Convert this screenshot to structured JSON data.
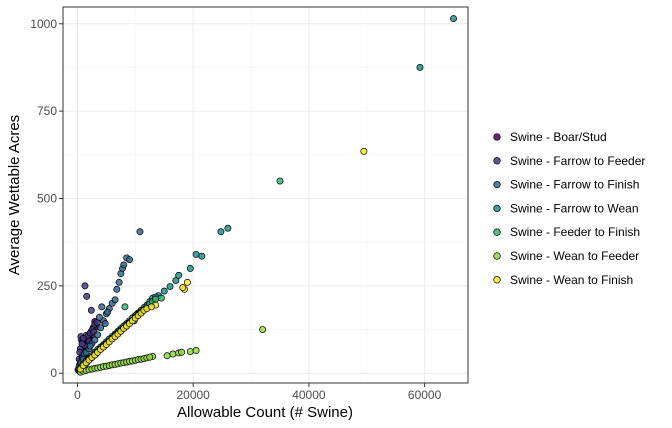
{
  "chart_data": {
    "type": "scatter",
    "title": "",
    "xlabel": "Allowable Count (# Swine)",
    "ylabel": "Average Wettable Acres",
    "xlim": [
      -2500,
      67500
    ],
    "ylim": [
      -28,
      1048
    ],
    "x_ticks": [
      {
        "value": 0,
        "label": "0"
      },
      {
        "value": 20000,
        "label": "20000"
      },
      {
        "value": 40000,
        "label": "40000"
      },
      {
        "value": 60000,
        "label": "60000"
      }
    ],
    "y_ticks": [
      {
        "value": 0,
        "label": "0"
      },
      {
        "value": 250,
        "label": "250"
      },
      {
        "value": 500,
        "label": "500"
      },
      {
        "value": 750,
        "label": "750"
      },
      {
        "value": 1000,
        "label": "1000"
      }
    ],
    "grid": true,
    "legend_position": "right",
    "point_style": {
      "stroke": "#000000",
      "opacity": 0.85
    },
    "series": [
      {
        "name": "Swine - Boar/Stud",
        "color": "#440154",
        "points": [
          [
            200,
            12
          ],
          [
            400,
            25
          ],
          [
            600,
            38
          ],
          [
            800,
            48
          ],
          [
            1000,
            60
          ],
          [
            1300,
            72
          ],
          [
            1600,
            85
          ],
          [
            2000,
            100
          ],
          [
            2400,
            120
          ],
          [
            2700,
            130
          ],
          [
            3000,
            148
          ],
          [
            3300,
            132
          ],
          [
            2500,
            110
          ],
          [
            1800,
            95
          ],
          [
            900,
            55
          ],
          [
            300,
            18
          ],
          [
            150,
            8
          ],
          [
            500,
            30
          ],
          [
            1100,
            66
          ],
          [
            1500,
            78
          ]
        ]
      },
      {
        "name": "Swine - Farrow to Feeder",
        "color": "#443983",
        "points": [
          [
            100,
            10
          ],
          [
            300,
            40
          ],
          [
            500,
            70
          ],
          [
            700,
            95
          ],
          [
            900,
            90
          ],
          [
            1200,
            80
          ],
          [
            1500,
            108
          ],
          [
            1800,
            105
          ],
          [
            2200,
            115
          ],
          [
            2600,
            125
          ],
          [
            3000,
            140
          ],
          [
            3400,
            145
          ],
          [
            600,
            105
          ],
          [
            400,
            60
          ],
          [
            1000,
            100
          ],
          [
            2000,
            92
          ],
          [
            2800,
            118
          ],
          [
            1300,
            250
          ],
          [
            1600,
            220
          ],
          [
            2400,
            180
          ],
          [
            800,
            84
          ]
        ]
      },
      {
        "name": "Swine - Farrow to Finish",
        "color": "#31688e",
        "points": [
          [
            300,
            20
          ],
          [
            600,
            30
          ],
          [
            900,
            45
          ],
          [
            1200,
            55
          ],
          [
            1500,
            60
          ],
          [
            2000,
            70
          ],
          [
            2500,
            85
          ],
          [
            3000,
            95
          ],
          [
            3500,
            110
          ],
          [
            4000,
            130
          ],
          [
            4500,
            150
          ],
          [
            5000,
            170
          ],
          [
            5500,
            185
          ],
          [
            6000,
            200
          ],
          [
            6500,
            210
          ],
          [
            6800,
            240
          ],
          [
            7200,
            260
          ],
          [
            7500,
            285
          ],
          [
            7800,
            300
          ],
          [
            8000,
            310
          ],
          [
            8500,
            330
          ],
          [
            9000,
            325
          ],
          [
            4200,
            190
          ],
          [
            3800,
            160
          ],
          [
            5200,
            175
          ],
          [
            1000,
            40
          ],
          [
            2200,
            78
          ],
          [
            4800,
            142
          ],
          [
            10800,
            405
          ]
        ]
      },
      {
        "name": "Swine - Farrow to Wean",
        "color": "#21918c",
        "points": [
          [
            500,
            15
          ],
          [
            1000,
            25
          ],
          [
            1500,
            35
          ],
          [
            2000,
            42
          ],
          [
            2500,
            50
          ],
          [
            3000,
            60
          ],
          [
            3500,
            68
          ],
          [
            4000,
            75
          ],
          [
            4500,
            82
          ],
          [
            5000,
            90
          ],
          [
            5500,
            98
          ],
          [
            6000,
            105
          ],
          [
            6500,
            112
          ],
          [
            7000,
            120
          ],
          [
            7500,
            128
          ],
          [
            8000,
            135
          ],
          [
            8500,
            142
          ],
          [
            9000,
            150
          ],
          [
            9500,
            158
          ],
          [
            10000,
            165
          ],
          [
            10500,
            172
          ],
          [
            11000,
            180
          ],
          [
            11500,
            188
          ],
          [
            12000,
            195
          ],
          [
            12500,
            205
          ],
          [
            13000,
            215
          ],
          [
            14000,
            222
          ],
          [
            15000,
            235
          ],
          [
            16000,
            248
          ],
          [
            17000,
            265
          ],
          [
            17500,
            280
          ],
          [
            19500,
            300
          ],
          [
            20500,
            340
          ],
          [
            21500,
            335
          ],
          [
            24800,
            405
          ],
          [
            26000,
            415
          ],
          [
            59200,
            875
          ],
          [
            65000,
            1015
          ],
          [
            3200,
            55
          ],
          [
            7200,
            122
          ],
          [
            10200,
            168
          ],
          [
            13500,
            218
          ]
        ]
      },
      {
        "name": "Swine - Feeder to Finish",
        "color": "#35b779",
        "points": [
          [
            400,
            8
          ],
          [
            800,
            15
          ],
          [
            1200,
            22
          ],
          [
            1600,
            30
          ],
          [
            2000,
            38
          ],
          [
            2500,
            45
          ],
          [
            3000,
            55
          ],
          [
            3500,
            62
          ],
          [
            4000,
            70
          ],
          [
            4500,
            78
          ],
          [
            5000,
            85
          ],
          [
            5500,
            92
          ],
          [
            6000,
            100
          ],
          [
            6500,
            108
          ],
          [
            7000,
            115
          ],
          [
            7500,
            122
          ],
          [
            8000,
            130
          ],
          [
            8500,
            138
          ],
          [
            9000,
            145
          ],
          [
            9500,
            152
          ],
          [
            10000,
            160
          ],
          [
            10500,
            168
          ],
          [
            11000,
            175
          ],
          [
            11500,
            182
          ],
          [
            12000,
            190
          ],
          [
            12500,
            198
          ],
          [
            13000,
            205
          ],
          [
            13500,
            212
          ],
          [
            14500,
            215
          ],
          [
            8200,
            190
          ],
          [
            2200,
            42
          ],
          [
            9800,
            150
          ],
          [
            35000,
            550
          ],
          [
            1800,
            35
          ]
        ]
      },
      {
        "name": "Swine - Wean to Feeder",
        "color": "#90d743",
        "points": [
          [
            500,
            3
          ],
          [
            1000,
            6
          ],
          [
            1500,
            8
          ],
          [
            2000,
            10
          ],
          [
            2500,
            12
          ],
          [
            3000,
            14
          ],
          [
            3500,
            15
          ],
          [
            4000,
            17
          ],
          [
            4500,
            19
          ],
          [
            5000,
            20
          ],
          [
            5500,
            22
          ],
          [
            6000,
            24
          ],
          [
            6500,
            25
          ],
          [
            7000,
            27
          ],
          [
            7500,
            29
          ],
          [
            8000,
            30
          ],
          [
            8500,
            32
          ],
          [
            9000,
            34
          ],
          [
            9500,
            35
          ],
          [
            10000,
            37
          ],
          [
            10500,
            39
          ],
          [
            11000,
            40
          ],
          [
            11500,
            42
          ],
          [
            12000,
            44
          ],
          [
            13000,
            48
          ],
          [
            15500,
            50
          ],
          [
            16500,
            55
          ],
          [
            17500,
            58
          ],
          [
            18000,
            60
          ],
          [
            19500,
            62
          ],
          [
            20500,
            65
          ],
          [
            32000,
            125
          ],
          [
            12500,
            46
          ]
        ]
      },
      {
        "name": "Swine - Wean to Finish",
        "color": "#fde725",
        "points": [
          [
            500,
            12
          ],
          [
            1000,
            22
          ],
          [
            1500,
            30
          ],
          [
            2000,
            38
          ],
          [
            2500,
            45
          ],
          [
            3000,
            52
          ],
          [
            3500,
            60
          ],
          [
            4000,
            68
          ],
          [
            4500,
            75
          ],
          [
            5000,
            82
          ],
          [
            5500,
            90
          ],
          [
            6000,
            98
          ],
          [
            6500,
            105
          ],
          [
            7000,
            112
          ],
          [
            7500,
            120
          ],
          [
            8000,
            128
          ],
          [
            8500,
            135
          ],
          [
            9000,
            142
          ],
          [
            9500,
            150
          ],
          [
            10000,
            158
          ],
          [
            10500,
            165
          ],
          [
            11000,
            172
          ],
          [
            11500,
            180
          ],
          [
            12000,
            185
          ],
          [
            13500,
            195
          ],
          [
            18500,
            240
          ],
          [
            19000,
            260
          ],
          [
            49500,
            635
          ],
          [
            18200,
            245
          ],
          [
            12800,
            190
          ]
        ]
      }
    ]
  }
}
